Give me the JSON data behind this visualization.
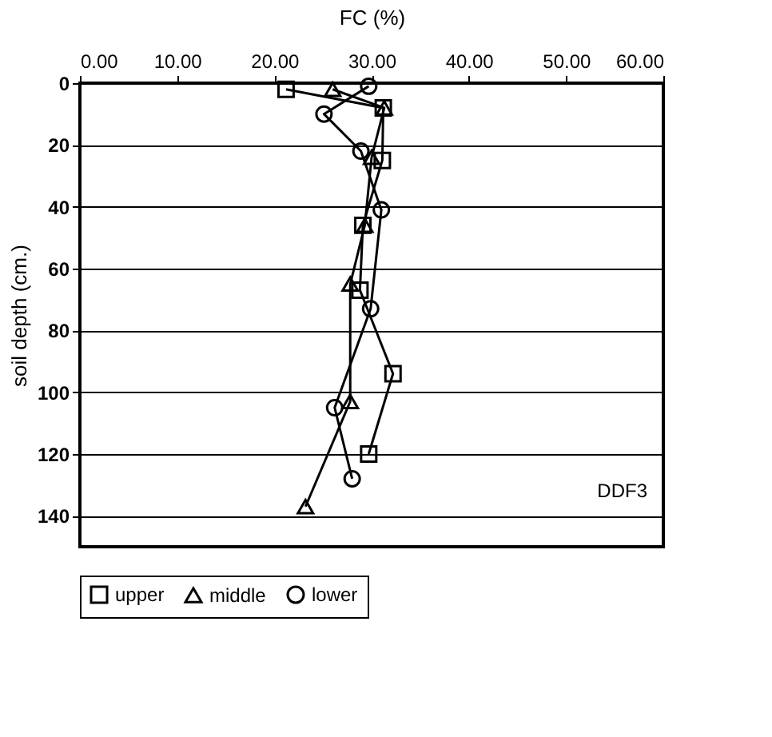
{
  "chart_data": {
    "type": "line",
    "xlabel": "FC (%)",
    "ylabel": "soil depth (cm.)",
    "xlim": [
      0,
      60
    ],
    "xticks": [
      {
        "value": 0,
        "label": "0.00"
      },
      {
        "value": 10,
        "label": "10.00"
      },
      {
        "value": 20,
        "label": "20.00"
      },
      {
        "value": 30,
        "label": "30.00"
      },
      {
        "value": 40,
        "label": "40.00"
      },
      {
        "value": 50,
        "label": "50.00"
      },
      {
        "value": 60,
        "label": "60.00"
      }
    ],
    "ylim": [
      150,
      0
    ],
    "yticks": [
      0,
      20,
      40,
      60,
      80,
      100,
      120,
      140
    ],
    "grid": "y",
    "legend": "bottom",
    "line_style": "solid",
    "annotations": [
      "DDF3"
    ],
    "series": [
      {
        "name": "upper",
        "color": "#000000",
        "marker": "square",
        "x": [
          21.2,
          31.2,
          31.1,
          29.1,
          28.8,
          32.2,
          29.7
        ],
        "values": [
          2,
          8,
          25,
          46,
          67,
          94,
          120
        ]
      },
      {
        "name": "middle",
        "color": "#000000",
        "marker": "triangle",
        "x": [
          26,
          31.3,
          30,
          29.3,
          27.8,
          27.8,
          23.2
        ],
        "values": [
          2,
          8,
          24,
          46,
          65,
          103,
          137
        ]
      },
      {
        "name": "lower",
        "color": "#000000",
        "marker": "circle",
        "x": [
          29.7,
          25.1,
          28.9,
          31,
          29.9,
          26.2,
          28
        ],
        "values": [
          1,
          10,
          22,
          41,
          73,
          105,
          128
        ]
      }
    ]
  }
}
